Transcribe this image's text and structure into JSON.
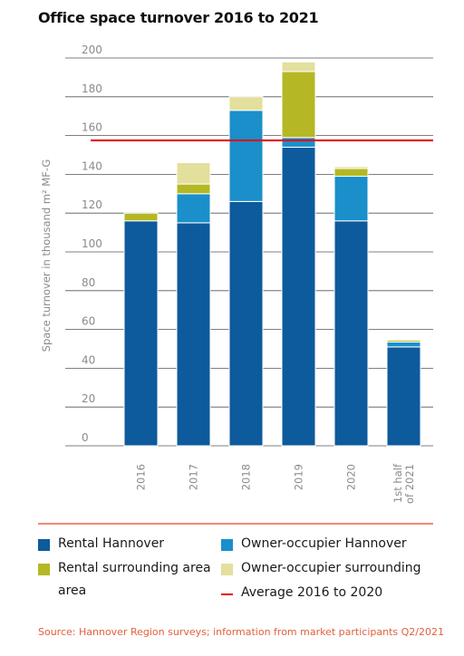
{
  "title": "Office space turnover 2016 to 2021",
  "source": "Source: Hannover Region surveys; information from market participants Q2/2021",
  "colors": {
    "rental_hannover": "#0d5a9c",
    "owner_hannover": "#1a8fca",
    "rental_surrounding": "#b5b824",
    "owner_surrounding": "#e3df9c",
    "average_line": "#e30613"
  },
  "legend": [
    {
      "label": "Rental Hannover",
      "color": "#0d5a9c",
      "kind": "box"
    },
    {
      "label": "Owner-occupier Hannover",
      "color": "#1a8fca",
      "kind": "box"
    },
    {
      "label": "Rental surrounding area area",
      "color": "#b5b824",
      "kind": "box"
    },
    {
      "label": "Owner-occupier surrounding",
      "color": "#e3df9c",
      "kind": "box"
    },
    {
      "label": "Average 2016 to 2020",
      "color": "#e30613",
      "kind": "line"
    }
  ],
  "chart_data": {
    "type": "bar",
    "stacked": true,
    "title": "Office space turnover 2016 to 2021",
    "ylabel": "Space turnover in thousand m² MF-G",
    "xlabel": "",
    "ylim": [
      0,
      200
    ],
    "yticks": [
      0,
      20,
      40,
      60,
      80,
      100,
      120,
      140,
      160,
      180,
      200
    ],
    "grid": true,
    "categories": [
      "2016",
      "2017",
      "2018",
      "2019",
      "2020",
      "1st half of 2021"
    ],
    "series": [
      {
        "name": "Rental Hannover",
        "values": [
          116,
          115,
          126,
          154,
          116,
          51
        ]
      },
      {
        "name": "Owner-occupier Hannover",
        "values": [
          0,
          15,
          47,
          5,
          23,
          2.5
        ]
      },
      {
        "name": "Rental surrounding area area",
        "values": [
          4,
          5,
          0,
          34,
          4,
          1
        ]
      },
      {
        "name": "Owner-occupier surrounding",
        "values": [
          0,
          11,
          7,
          5,
          1,
          0.5
        ]
      }
    ],
    "average": {
      "name": "Average 2016 to 2020",
      "value": 157.5
    }
  }
}
